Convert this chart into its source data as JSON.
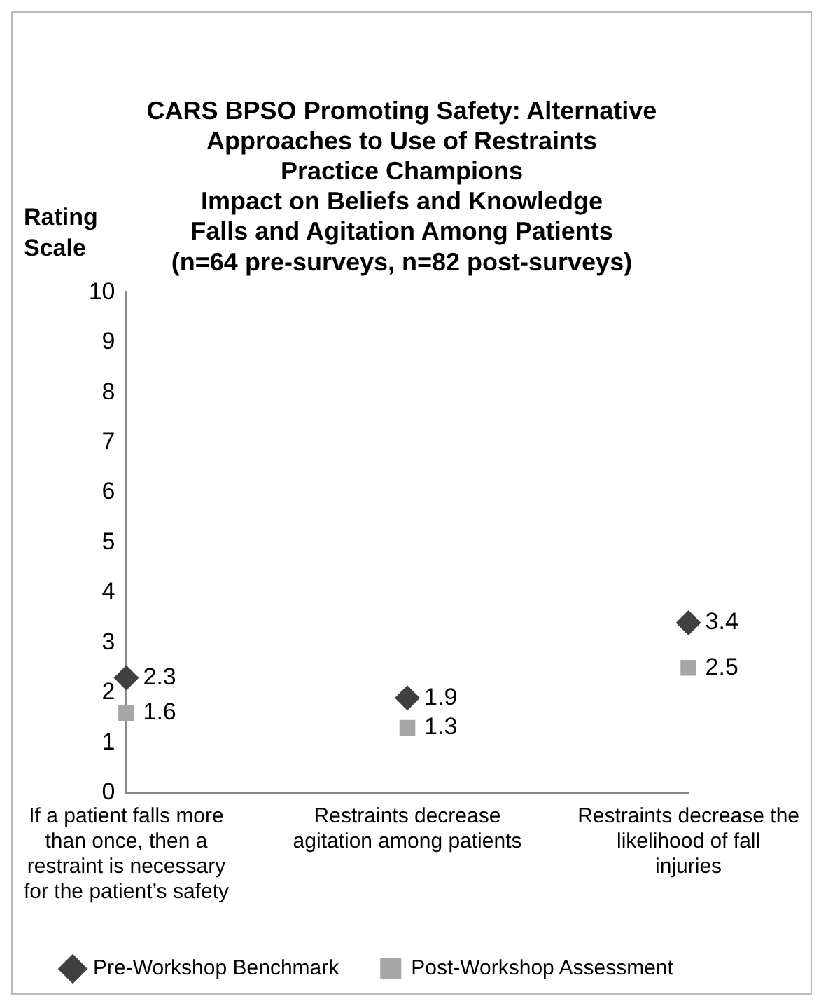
{
  "chart_data": {
    "type": "scatter",
    "title": "CARS BPSO Promoting Safety: Alternative\nApproaches to Use of Restraints\nPractice Champions\nImpact on Beliefs and Knowledge\nFalls and Agitation Among Patients\n(n=64 pre-surveys, n=82 post-surveys)",
    "ylabel": "Rating Scale",
    "categories": [
      "If a patient falls more than once, then a restraint is necessary for the patient’s safety",
      "Restraints decrease agitation among patients",
      "Restraints decrease the likelihood of fall injuries"
    ],
    "series": [
      {
        "name": "Pre-Workshop Benchmark",
        "color": "#404040",
        "marker": "diamond",
        "values": [
          2.3,
          1.9,
          3.4
        ]
      },
      {
        "name": "Post-Workshop Assessment",
        "color": "#a6a6a6",
        "marker": "square",
        "values": [
          1.6,
          1.3,
          2.5
        ]
      }
    ],
    "ylim": [
      0,
      10
    ],
    "yticks": [
      0,
      1,
      2,
      3,
      4,
      5,
      6,
      7,
      8,
      9,
      10
    ],
    "grid": false,
    "legend": "bottom",
    "data_labels": true
  }
}
